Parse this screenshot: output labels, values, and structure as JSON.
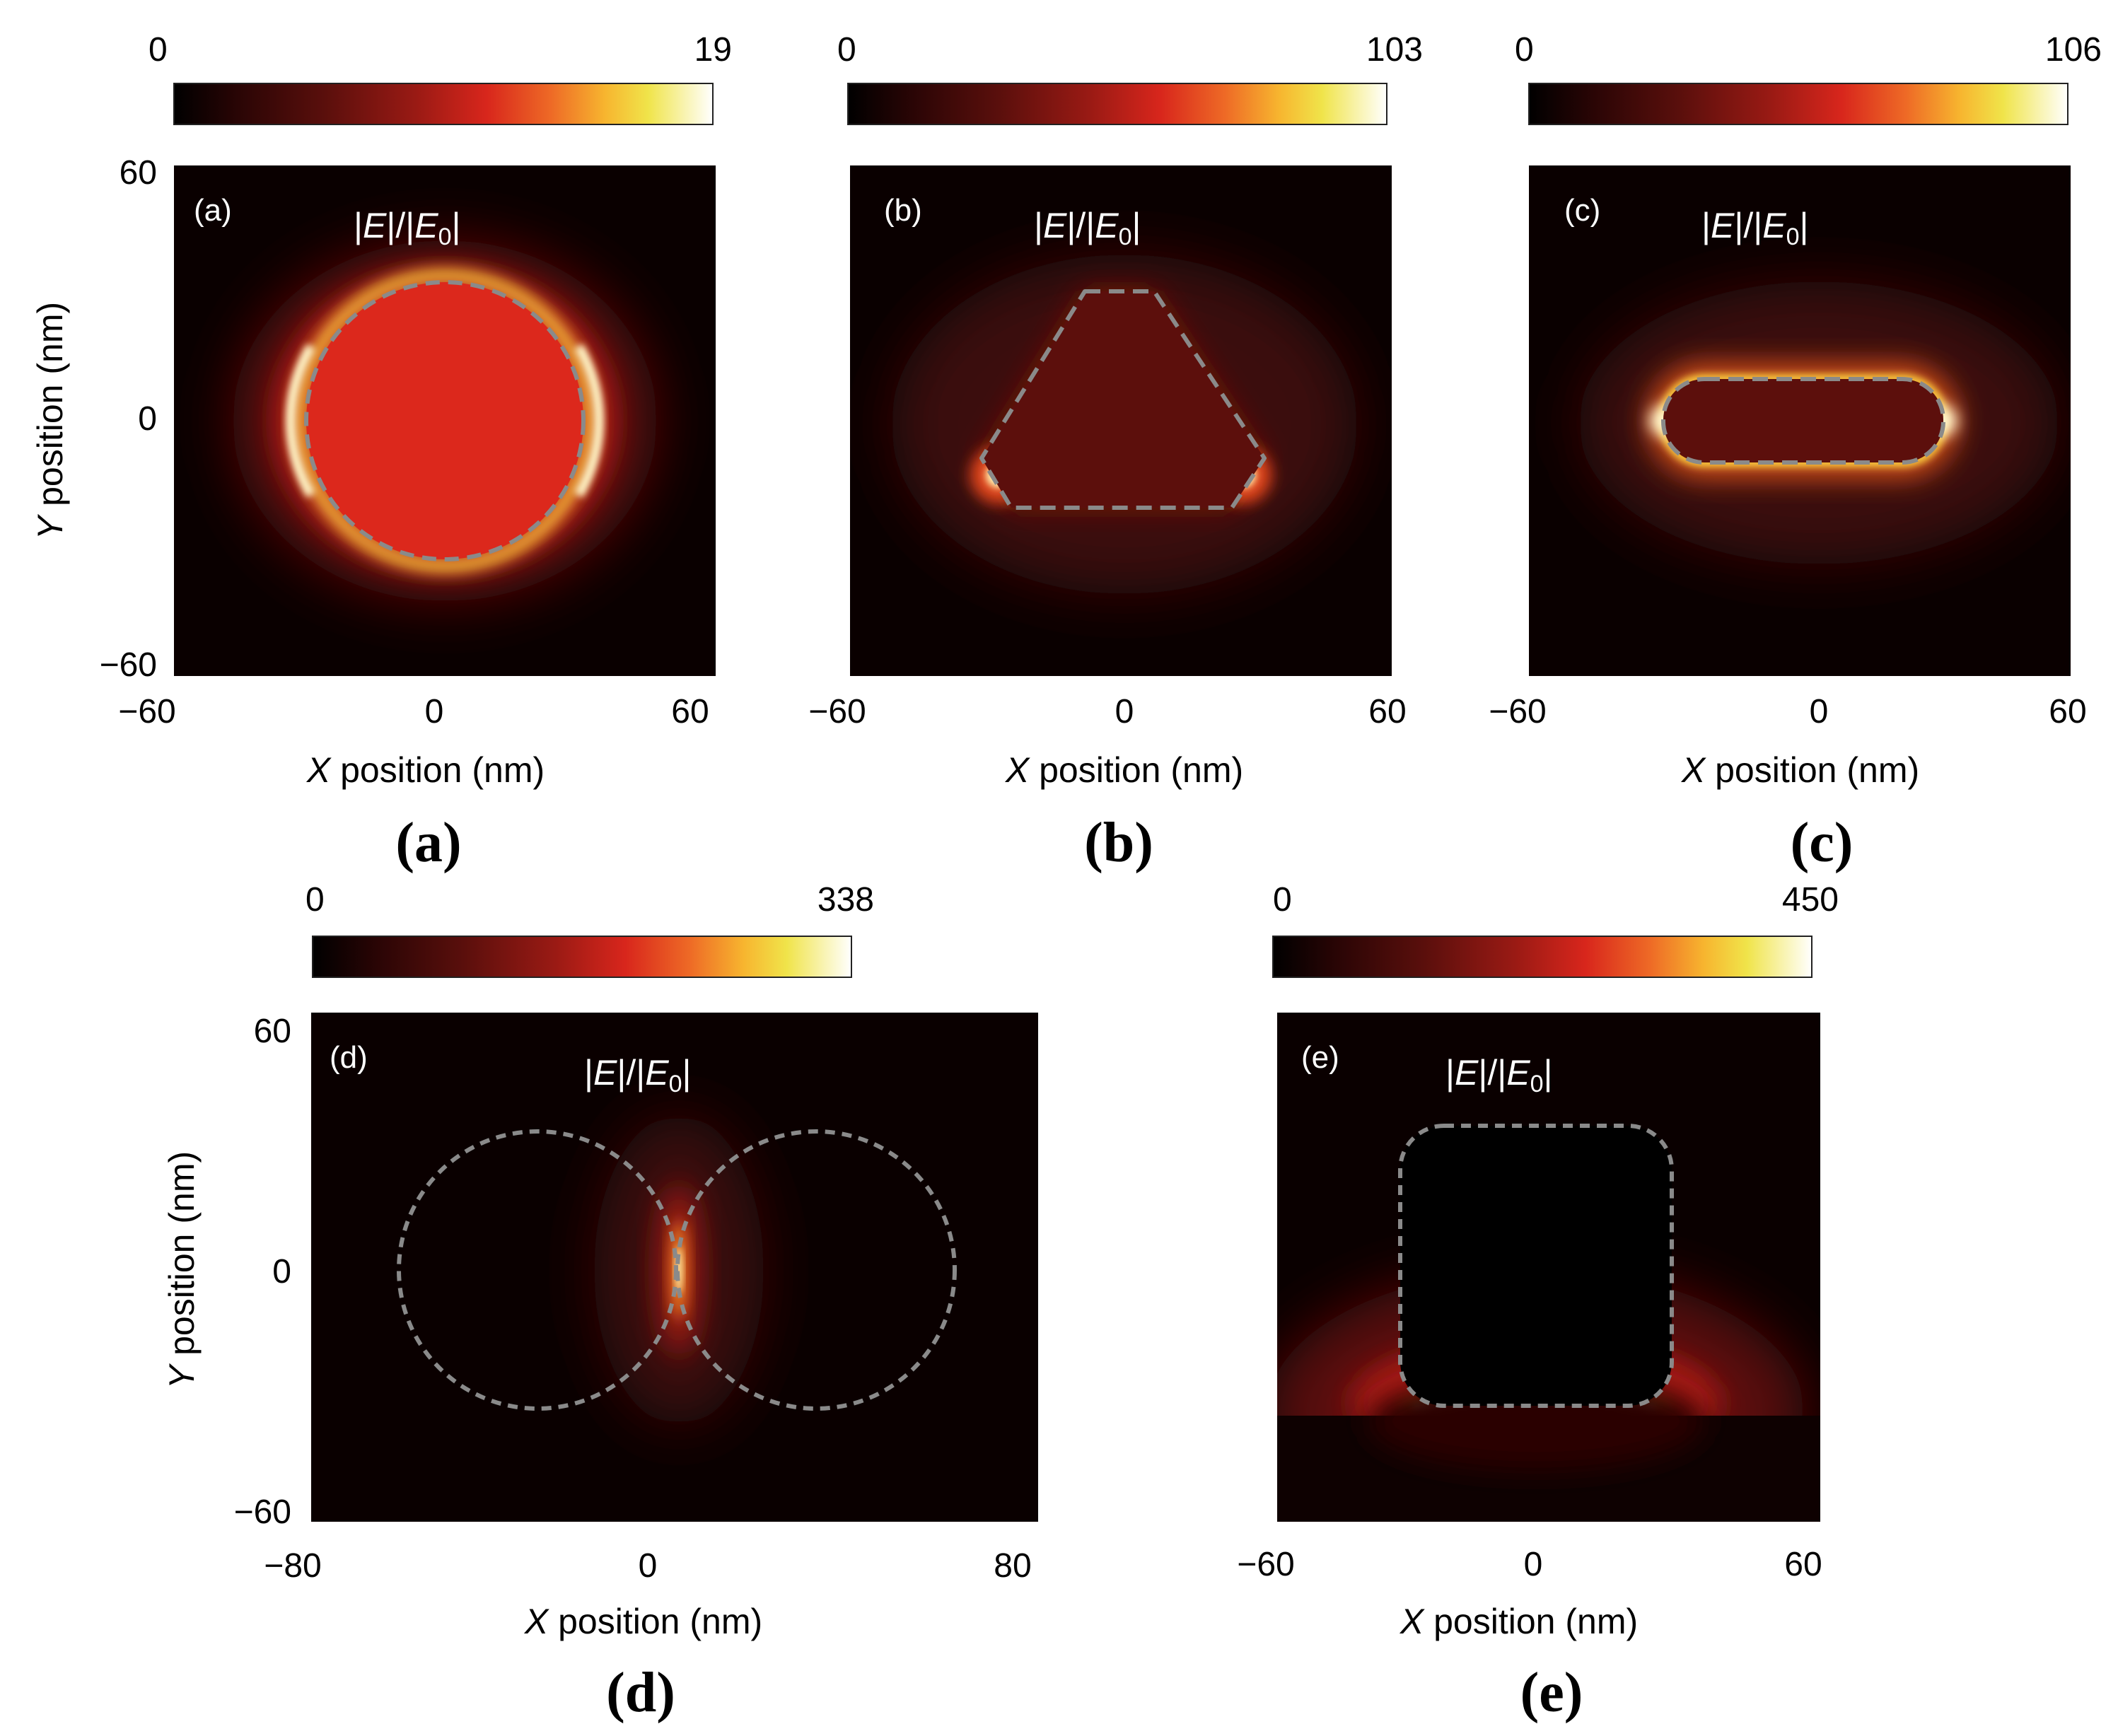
{
  "colors": {
    "colormap": [
      "#000000",
      "#2a0505",
      "#5a0f0c",
      "#9a1a14",
      "#d8261c",
      "#ee6a26",
      "#f7b52f",
      "#f0e44a",
      "#ffffff"
    ],
    "outline": "#8a8a8a"
  },
  "chart_data": [
    {
      "type": "heatmap",
      "panel": "a",
      "shape": "sphere",
      "inner_label": "(a)",
      "caption": "(a)",
      "quantity": {
        "pre": "|",
        "e": "E",
        "mid": "|/|",
        "e0": "E",
        "sub": "0",
        "post": "|"
      },
      "colorbar": {
        "min": "0",
        "max": "19",
        "vmax": 19
      },
      "xlabel": {
        "var": "X",
        "rest": " position (nm)"
      },
      "ylabel": {
        "var": "Y",
        "rest": " position (nm)"
      },
      "xlim": [
        -60,
        60
      ],
      "ylim": [
        -60,
        60
      ],
      "xticks": [
        "−60",
        "0",
        "60"
      ],
      "yticks": [
        "60",
        "0",
        "−60"
      ],
      "peak_enhancement": 19
    },
    {
      "type": "heatmap",
      "panel": "b",
      "shape": "triangle",
      "inner_label": "(b)",
      "caption": "(b)",
      "quantity": {
        "pre": "|",
        "e": "E",
        "mid": "|/|",
        "e0": "E",
        "sub": "0",
        "post": "|"
      },
      "colorbar": {
        "min": "0",
        "max": "103",
        "vmax": 103
      },
      "xlabel": {
        "var": "X",
        "rest": " position (nm)"
      },
      "xlim": [
        -60,
        60
      ],
      "ylim": [
        -60,
        60
      ],
      "xticks": [
        "−60",
        "0",
        "60"
      ],
      "peak_enhancement": 103
    },
    {
      "type": "heatmap",
      "panel": "c",
      "shape": "rod",
      "inner_label": "(c)",
      "caption": "(c)",
      "quantity": {
        "pre": "|",
        "e": "E",
        "mid": "|/|",
        "e0": "E",
        "sub": "0",
        "post": "|"
      },
      "colorbar": {
        "min": "0",
        "max": "106",
        "vmax": 106
      },
      "xlabel": {
        "var": "X",
        "rest": " position (nm)"
      },
      "xlim": [
        -60,
        60
      ],
      "ylim": [
        -60,
        60
      ],
      "xticks": [
        "−60",
        "0",
        "60"
      ],
      "peak_enhancement": 106
    },
    {
      "type": "heatmap",
      "panel": "d",
      "shape": "dimer",
      "inner_label": "(d)",
      "caption": "(d)",
      "quantity": {
        "pre": "|",
        "e": "E",
        "mid": "|/|",
        "e0": "E",
        "sub": "0",
        "post": "|"
      },
      "colorbar": {
        "min": "0",
        "max": "338",
        "vmax": 338
      },
      "xlabel": {
        "var": "X",
        "rest": " position (nm)"
      },
      "ylabel": {
        "var": "Y",
        "rest": " position (nm)"
      },
      "xlim": [
        -80,
        80
      ],
      "ylim": [
        -60,
        60
      ],
      "xticks": [
        "−80",
        "0",
        "80"
      ],
      "yticks": [
        "60",
        "0",
        "−60"
      ],
      "peak_enhancement": 338
    },
    {
      "type": "heatmap",
      "panel": "e",
      "shape": "cube-on-substrate",
      "inner_label": "(e)",
      "caption": "(e)",
      "quantity": {
        "pre": "|",
        "e": "E",
        "mid": "|/|",
        "e0": "E",
        "sub": "0",
        "post": "|"
      },
      "colorbar": {
        "min": "0",
        "max": "450",
        "vmax": 450
      },
      "xlabel": {
        "var": "X",
        "rest": " position (nm)"
      },
      "xlim": [
        -60,
        60
      ],
      "ylim": [
        -60,
        60
      ],
      "xticks": [
        "−60",
        "0",
        "60"
      ],
      "peak_enhancement": 450
    }
  ]
}
